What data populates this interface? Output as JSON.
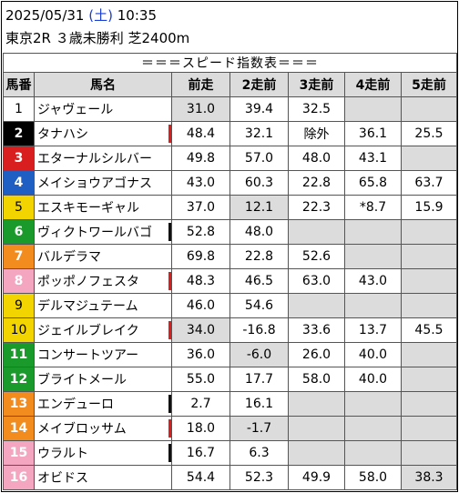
{
  "header": {
    "date": "2025/05/31",
    "weekday_open": "(",
    "weekday": "土",
    "weekday_close": ")",
    "time": "10:35",
    "race": "東京2R ３歳未勝利 芝2400m"
  },
  "table_title": "＝＝＝スピード指数表＝＝＝",
  "columns": [
    "馬番",
    "馬名",
    "前走",
    "2走前",
    "3走前",
    "4走前",
    "5走前"
  ],
  "colors": {
    "gate1": "#ffffff",
    "gate2": "#000000",
    "gate3": "#d81e1e",
    "gate4": "#1f5fc4",
    "gate5": "#f2d500",
    "gate6": "#1a9a2a",
    "gate7": "#f28c1e",
    "gate8": "#f4a6c0",
    "mark_red": "#e21a1a",
    "mark_black": "#111111",
    "cell_gray": "#dcdcdc"
  },
  "rows": [
    {
      "num": "1",
      "name": "ジャヴェール",
      "v": [
        "31.0",
        "39.4",
        "32.5",
        "",
        ""
      ],
      "g": [
        true,
        false,
        false,
        true,
        true
      ],
      "mark": ""
    },
    {
      "num": "2",
      "name": "タナハシ",
      "v": [
        "48.4",
        "32.1",
        "除外",
        "36.1",
        "25.5"
      ],
      "g": [
        false,
        false,
        false,
        false,
        false
      ],
      "mark": "red"
    },
    {
      "num": "3",
      "name": "エターナルシルバー",
      "v": [
        "49.8",
        "57.0",
        "48.0",
        "43.1",
        ""
      ],
      "g": [
        false,
        false,
        false,
        false,
        true
      ],
      "mark": ""
    },
    {
      "num": "4",
      "name": "メイショウアゴナス",
      "v": [
        "43.0",
        "60.3",
        "22.8",
        "65.8",
        "63.7"
      ],
      "g": [
        false,
        false,
        false,
        false,
        false
      ],
      "mark": ""
    },
    {
      "num": "5",
      "name": "エスキモーギャル",
      "v": [
        "37.0",
        "12.1",
        "22.3",
        "*8.7",
        "15.9"
      ],
      "g": [
        false,
        true,
        false,
        false,
        false
      ],
      "mark": ""
    },
    {
      "num": "6",
      "name": "ヴィクトワールバゴ",
      "v": [
        "52.8",
        "48.0",
        "",
        "",
        ""
      ],
      "g": [
        false,
        false,
        true,
        true,
        true
      ],
      "mark": "black"
    },
    {
      "num": "7",
      "name": "バルデラマ",
      "v": [
        "69.8",
        "22.8",
        "52.6",
        "",
        ""
      ],
      "g": [
        false,
        false,
        false,
        true,
        true
      ],
      "mark": ""
    },
    {
      "num": "8",
      "name": "ポッポノフェスタ",
      "v": [
        "48.3",
        "46.5",
        "63.0",
        "43.0",
        ""
      ],
      "g": [
        false,
        false,
        false,
        false,
        true
      ],
      "mark": "red"
    },
    {
      "num": "9",
      "name": "デルマジュテーム",
      "v": [
        "46.0",
        "54.6",
        "",
        "",
        ""
      ],
      "g": [
        false,
        false,
        true,
        true,
        true
      ],
      "mark": ""
    },
    {
      "num": "10",
      "name": "ジェイルブレイク",
      "v": [
        "34.0",
        "-16.8",
        "33.6",
        "13.7",
        "45.5"
      ],
      "g": [
        true,
        false,
        false,
        false,
        false
      ],
      "mark": "red"
    },
    {
      "num": "11",
      "name": "コンサートツアー",
      "v": [
        "36.0",
        "-6.0",
        "26.0",
        "40.0",
        ""
      ],
      "g": [
        false,
        true,
        false,
        false,
        true
      ],
      "mark": ""
    },
    {
      "num": "12",
      "name": "ブライトメール",
      "v": [
        "55.0",
        "17.7",
        "58.0",
        "40.0",
        ""
      ],
      "g": [
        false,
        false,
        false,
        false,
        true
      ],
      "mark": ""
    },
    {
      "num": "13",
      "name": "エンデューロ",
      "v": [
        "2.7",
        "16.1",
        "",
        "",
        ""
      ],
      "g": [
        false,
        false,
        true,
        true,
        true
      ],
      "mark": "black"
    },
    {
      "num": "14",
      "name": "メイブロッサム",
      "v": [
        "18.0",
        "-1.7",
        "",
        "",
        ""
      ],
      "g": [
        false,
        true,
        true,
        true,
        true
      ],
      "mark": "red"
    },
    {
      "num": "15",
      "name": "ウラルト",
      "v": [
        "16.7",
        "6.3",
        "",
        "",
        ""
      ],
      "g": [
        false,
        false,
        true,
        true,
        true
      ],
      "mark": "black"
    },
    {
      "num": "16",
      "name": "オビドス",
      "v": [
        "54.4",
        "52.3",
        "49.9",
        "58.0",
        "38.3"
      ],
      "g": [
        false,
        false,
        false,
        false,
        true
      ],
      "mark": ""
    }
  ]
}
